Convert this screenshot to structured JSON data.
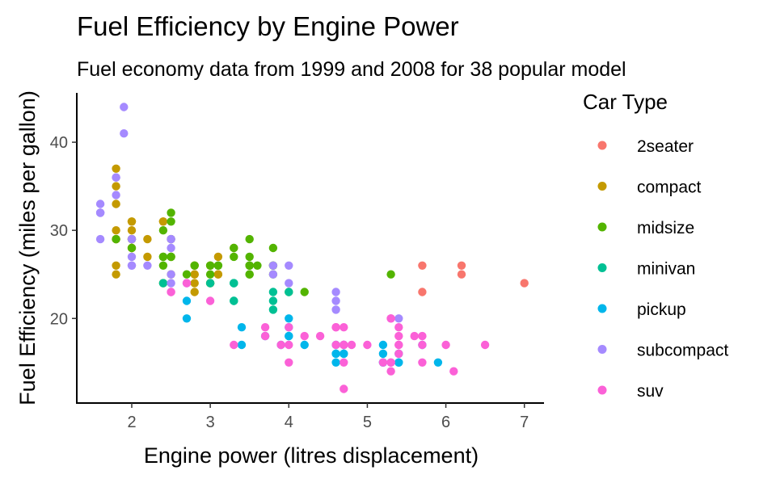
{
  "chart_data": {
    "type": "scatter",
    "title": "Fuel Efficiency by Engine Power",
    "subtitle": "Fuel economy data from 1999 and 2008 for 38 popular model",
    "xlabel": "Engine power (litres displacement)",
    "ylabel": "Fuel Efficiency (miles per gallon)",
    "xlim": [
      1.3,
      7.25
    ],
    "ylim": [
      10.4,
      45.6
    ],
    "x_ticks": [
      2,
      3,
      4,
      5,
      6,
      7
    ],
    "y_ticks": [
      20,
      30,
      40
    ],
    "grid": false,
    "legend": {
      "title": "Car Type",
      "placement": "right",
      "entries": [
        "2seater",
        "compact",
        "midsize",
        "minivan",
        "pickup",
        "subcompact",
        "suv"
      ]
    },
    "series": [
      {
        "name": "2seater",
        "color": "#F8766D",
        "points": [
          [
            5.7,
            26
          ],
          [
            5.7,
            23
          ],
          [
            6.2,
            26
          ],
          [
            6.2,
            25
          ],
          [
            7.0,
            24
          ]
        ]
      },
      {
        "name": "compact",
        "color": "#C49A00",
        "points": [
          [
            1.8,
            29
          ],
          [
            1.8,
            29
          ],
          [
            2.0,
            31
          ],
          [
            2.0,
            30
          ],
          [
            2.8,
            26
          ],
          [
            2.8,
            26
          ],
          [
            3.1,
            27
          ],
          [
            1.8,
            26
          ],
          [
            1.8,
            25
          ],
          [
            2.0,
            28
          ],
          [
            2.0,
            29
          ],
          [
            2.8,
            25
          ],
          [
            2.8,
            25
          ],
          [
            3.1,
            25
          ],
          [
            3.1,
            25
          ],
          [
            2.2,
            27
          ],
          [
            2.2,
            29
          ],
          [
            2.4,
            31
          ],
          [
            2.4,
            31
          ],
          [
            3.0,
            26
          ],
          [
            3.0,
            26
          ],
          [
            3.3,
            28
          ],
          [
            1.8,
            33
          ],
          [
            1.8,
            35
          ],
          [
            1.8,
            37
          ],
          [
            2.5,
            27
          ],
          [
            2.5,
            25
          ],
          [
            2.0,
            29
          ],
          [
            2.8,
            23
          ],
          [
            2.8,
            24
          ],
          [
            2.0,
            28
          ],
          [
            2.0,
            29
          ],
          [
            3.0,
            24
          ],
          [
            1.8,
            30
          ],
          [
            2.0,
            31
          ],
          [
            2.5,
            29
          ]
        ]
      },
      {
        "name": "midsize",
        "color": "#53B400",
        "points": [
          [
            2.4,
            27
          ],
          [
            2.4,
            30
          ],
          [
            3.1,
            26
          ],
          [
            3.5,
            29
          ],
          [
            3.6,
            26
          ],
          [
            2.4,
            27
          ],
          [
            3.0,
            24
          ],
          [
            3.3,
            27
          ],
          [
            3.5,
            25
          ],
          [
            3.8,
            26
          ],
          [
            3.8,
            25
          ],
          [
            4.0,
            23
          ],
          [
            2.5,
            31
          ],
          [
            2.5,
            32
          ],
          [
            3.5,
            27
          ],
          [
            3.5,
            26
          ],
          [
            2.4,
            26
          ],
          [
            2.4,
            24
          ],
          [
            2.5,
            27
          ],
          [
            3.0,
            26
          ],
          [
            3.5,
            26
          ],
          [
            3.5,
            25
          ],
          [
            1.8,
            29
          ],
          [
            2.0,
            28
          ],
          [
            2.0,
            29
          ],
          [
            2.8,
            26
          ],
          [
            3.1,
            26
          ],
          [
            2.5,
            29
          ],
          [
            2.7,
            25
          ],
          [
            3.0,
            25
          ],
          [
            3.5,
            26
          ],
          [
            3.8,
            28
          ],
          [
            4.2,
            23
          ],
          [
            5.3,
            25
          ],
          [
            3.3,
            28
          ],
          [
            3.8,
            26
          ],
          [
            2.5,
            27
          ]
        ]
      },
      {
        "name": "minivan",
        "color": "#00C094",
        "points": [
          [
            2.4,
            24
          ],
          [
            3.0,
            24
          ],
          [
            3.3,
            22
          ],
          [
            3.3,
            24
          ],
          [
            3.3,
            24
          ],
          [
            3.3,
            24
          ],
          [
            3.8,
            22
          ],
          [
            3.8,
            21
          ],
          [
            3.8,
            23
          ],
          [
            4.0,
            23
          ],
          [
            3.3,
            22
          ]
        ]
      },
      {
        "name": "pickup",
        "color": "#00B6EB",
        "points": [
          [
            2.7,
            20
          ],
          [
            2.7,
            22
          ],
          [
            3.4,
            17
          ],
          [
            3.4,
            19
          ],
          [
            3.7,
            18
          ],
          [
            3.9,
            17
          ],
          [
            4.0,
            18
          ],
          [
            4.0,
            20
          ],
          [
            4.2,
            17
          ],
          [
            4.6,
            17
          ],
          [
            4.6,
            16
          ],
          [
            4.7,
            16
          ],
          [
            4.7,
            17
          ],
          [
            5.2,
            15
          ],
          [
            5.2,
            16
          ],
          [
            5.4,
            15
          ],
          [
            5.2,
            17
          ],
          [
            5.2,
            15
          ],
          [
            5.7,
            17
          ],
          [
            5.9,
            15
          ],
          [
            4.0,
            18
          ],
          [
            4.0,
            19
          ],
          [
            4.6,
            16
          ],
          [
            4.7,
            17
          ],
          [
            4.7,
            16
          ],
          [
            5.4,
            16
          ],
          [
            5.4,
            15
          ],
          [
            4.6,
            15
          ]
        ]
      },
      {
        "name": "subcompact",
        "color": "#A58AFF",
        "points": [
          [
            1.6,
            33
          ],
          [
            1.6,
            32
          ],
          [
            1.6,
            32
          ],
          [
            1.6,
            29
          ],
          [
            1.6,
            32
          ],
          [
            1.8,
            34
          ],
          [
            1.8,
            36
          ],
          [
            1.8,
            36
          ],
          [
            2.0,
            29
          ],
          [
            2.0,
            26
          ],
          [
            2.0,
            27
          ],
          [
            2.5,
            29
          ],
          [
            2.5,
            28
          ],
          [
            2.5,
            29
          ],
          [
            2.5,
            24
          ],
          [
            2.2,
            26
          ],
          [
            2.7,
            24
          ],
          [
            3.8,
            26
          ],
          [
            3.8,
            25
          ],
          [
            4.0,
            26
          ],
          [
            4.0,
            24
          ],
          [
            4.6,
            21
          ],
          [
            4.6,
            22
          ],
          [
            4.6,
            23
          ],
          [
            5.4,
            20
          ],
          [
            1.9,
            44
          ],
          [
            1.9,
            41
          ],
          [
            2.0,
            29
          ],
          [
            2.0,
            26
          ],
          [
            2.5,
            25
          ]
        ]
      },
      {
        "name": "suv",
        "color": "#FB61D7",
        "points": [
          [
            5.3,
            20
          ],
          [
            5.3,
            15
          ],
          [
            5.3,
            20
          ],
          [
            5.7,
            17
          ],
          [
            6.0,
            17
          ],
          [
            5.7,
            18
          ],
          [
            6.5,
            17
          ],
          [
            4.7,
            12
          ],
          [
            4.7,
            17
          ],
          [
            5.7,
            15
          ],
          [
            6.1,
            14
          ],
          [
            4.0,
            17
          ],
          [
            4.6,
            17
          ],
          [
            4.6,
            19
          ],
          [
            5.4,
            18
          ],
          [
            5.4,
            17
          ],
          [
            5.4,
            19
          ],
          [
            4.2,
            18
          ],
          [
            4.4,
            18
          ],
          [
            3.9,
            17
          ],
          [
            4.7,
            19
          ],
          [
            4.7,
            15
          ],
          [
            4.7,
            17
          ],
          [
            5.2,
            15
          ],
          [
            3.0,
            22
          ],
          [
            4.0,
            15
          ],
          [
            3.3,
            17
          ],
          [
            3.7,
            19
          ],
          [
            3.7,
            18
          ],
          [
            4.7,
            17
          ],
          [
            5.3,
            14
          ],
          [
            5.3,
            15
          ],
          [
            4.6,
            19
          ],
          [
            2.5,
            23
          ],
          [
            2.5,
            23
          ],
          [
            5.6,
            18
          ],
          [
            4.0,
            19
          ],
          [
            5.4,
            16
          ],
          [
            5.4,
            17
          ],
          [
            4.8,
            17
          ],
          [
            5.0,
            17
          ],
          [
            2.7,
            24
          ]
        ]
      }
    ]
  }
}
